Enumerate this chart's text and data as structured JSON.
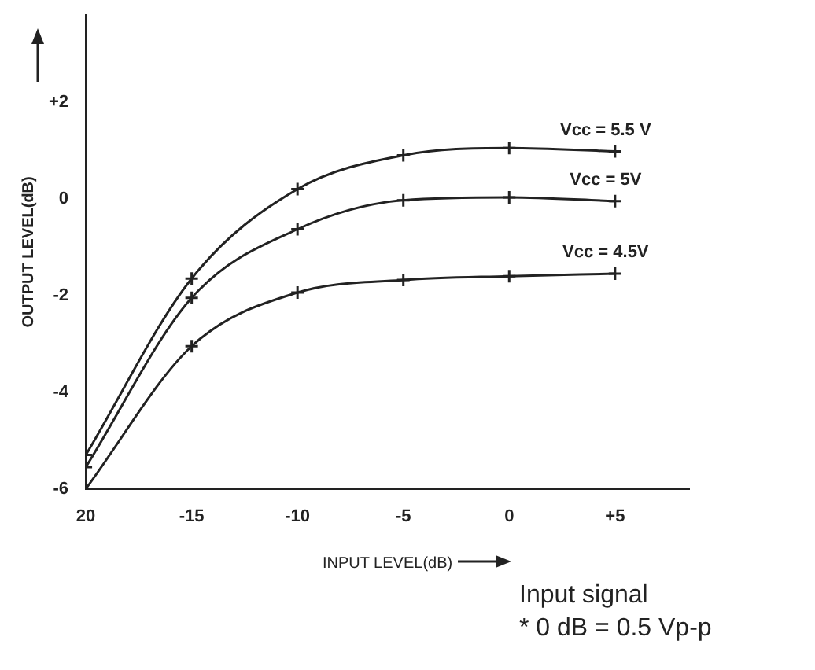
{
  "chart_data": {
    "type": "line",
    "xlabel": "INPUT LEVEL(dB)",
    "ylabel": "OUTPUT LEVEL(dB)",
    "x": [
      -20,
      -15,
      -10,
      -5,
      0,
      5
    ],
    "series": [
      {
        "name": "Vcc = 5.5 V",
        "color": "#222222",
        "values": [
          -5.3,
          -1.65,
          0.2,
          0.9,
          1.05,
          0.98
        ]
      },
      {
        "name": "Vcc = 5V",
        "color": "#222222",
        "values": [
          -5.55,
          -2.05,
          -0.63,
          -0.03,
          0.03,
          -0.05
        ]
      },
      {
        "name": "Vcc = 4.5V",
        "color": "#222222",
        "values": [
          -6,
          -3.05,
          -1.94,
          -1.68,
          -1.6,
          -1.55
        ]
      }
    ],
    "xlim": [
      -20,
      8.5
    ],
    "ylim": [
      -6,
      3.8
    ],
    "xticks": [
      {
        "value": -20,
        "label": "20"
      },
      -15,
      -10,
      -5,
      0,
      {
        "value": 5,
        "label": "+5"
      }
    ],
    "yticks": [
      -6,
      -4,
      -2,
      0,
      {
        "value": 2,
        "label": "+2"
      }
    ],
    "grid": false,
    "legend": false,
    "marker": "cross",
    "line_style": "solid",
    "annotations": [
      "Input signal",
      "* 0 dB = 0.5 Vp-p"
    ]
  }
}
